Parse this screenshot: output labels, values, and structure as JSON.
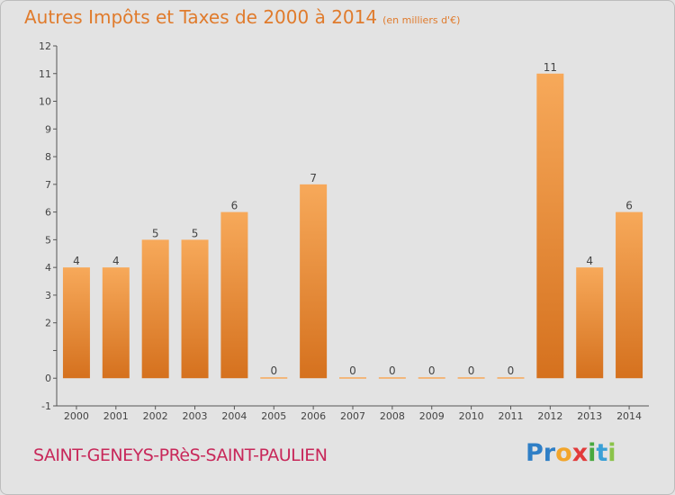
{
  "title": {
    "main": "Autres Impôts et Taxes de 2000 à 2014",
    "unit": "(en milliers d'€)"
  },
  "commune": "SAINT-GENEYS-PRèS-SAINT-PAULIEN",
  "logo": {
    "text": "Proxiti"
  },
  "chart_data": {
    "type": "bar",
    "title": "Autres Impôts et Taxes de 2000 à 2014",
    "subtitle": "(en milliers d'€)",
    "categories": [
      "2000",
      "2001",
      "2002",
      "2003",
      "2004",
      "2005",
      "2006",
      "2007",
      "2008",
      "2009",
      "2010",
      "2011",
      "2012",
      "2013",
      "2014"
    ],
    "values": [
      4,
      4,
      5,
      5,
      6,
      0,
      7,
      0,
      0,
      0,
      0,
      0,
      11,
      4,
      6
    ],
    "data_labels": [
      "4",
      "4",
      "5",
      "5",
      "6",
      "0",
      "7",
      "0",
      "0",
      "0",
      "0",
      "0",
      "11",
      "4",
      "6"
    ],
    "ylim": [
      -1,
      12
    ],
    "yticks": [
      -1,
      0,
      1,
      2,
      3,
      4,
      5,
      6,
      7,
      8,
      9,
      10,
      11,
      12
    ],
    "ytick_labels": [
      "-1",
      "0",
      "",
      "2",
      "3",
      "4",
      "5",
      "6",
      "7",
      "8",
      "9",
      "10",
      "11",
      "12"
    ],
    "grid": false,
    "legend": "none",
    "colors": {
      "bar_top": "#f7a95a",
      "bar_bottom": "#d5711e",
      "axis": "#555555",
      "text": "#444444"
    }
  }
}
